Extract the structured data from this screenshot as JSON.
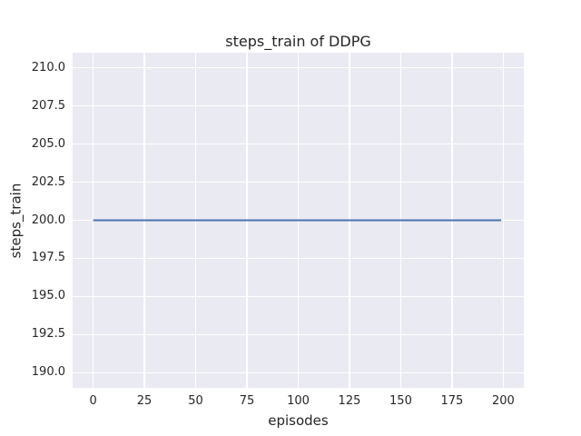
{
  "chart_data": {
    "type": "line",
    "title": "steps_train of DDPG",
    "xlabel": "episodes",
    "ylabel": "steps_train",
    "series": [
      {
        "name": "steps_train",
        "color": "#4C72B0",
        "line_width": 2,
        "x": [
          0,
          199
        ],
        "y": [
          200,
          200
        ],
        "constant_value": 200
      }
    ],
    "xlim": [
      -10,
      210
    ],
    "ylim": [
      189,
      211
    ],
    "x_ticks": [
      0,
      25,
      50,
      75,
      100,
      125,
      150,
      175,
      200
    ],
    "x_tick_labels": [
      "0",
      "25",
      "50",
      "75",
      "100",
      "125",
      "150",
      "175",
      "200"
    ],
    "y_ticks": [
      190.0,
      192.5,
      195.0,
      197.5,
      200.0,
      202.5,
      205.0,
      207.5,
      210.0
    ],
    "y_tick_labels": [
      "190.0",
      "192.5",
      "195.0",
      "197.5",
      "200.0",
      "202.5",
      "205.0",
      "207.5",
      "210.0"
    ],
    "grid": true,
    "legend_visible": false,
    "style": {
      "figure_bg": "#FFFFFF",
      "plot_bg": "#EAEAF2",
      "grid_color": "#FFFFFF",
      "text_color": "#262626"
    }
  }
}
